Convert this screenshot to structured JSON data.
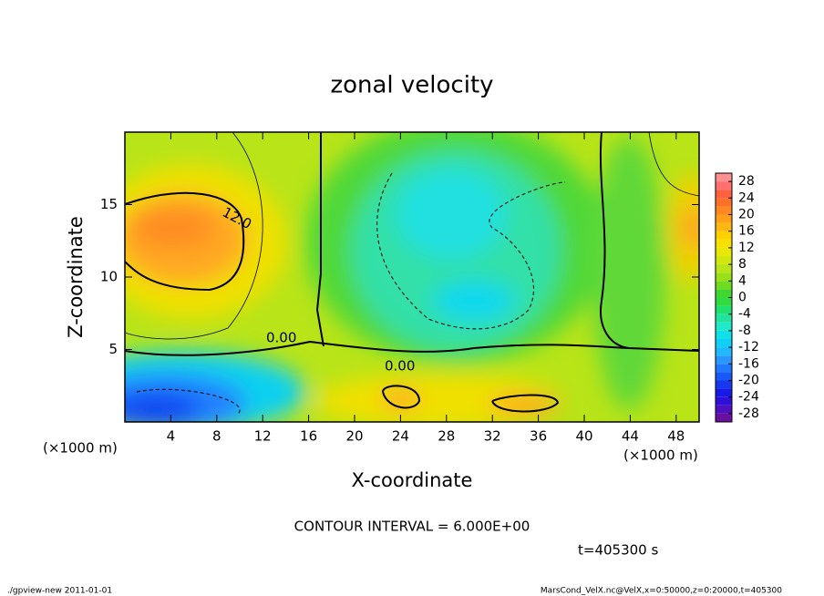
{
  "chart_data": {
    "type": "contour",
    "title": "zonal velocity",
    "x_label": "X-coordinate",
    "y_label": "Z-coordinate",
    "x_unit": "(×1000 m)",
    "y_unit": "(×1000 m)",
    "xlim": [
      0,
      50
    ],
    "xticks": [
      4,
      8,
      12,
      16,
      20,
      24,
      28,
      32,
      36,
      40,
      44,
      48
    ],
    "ylim": [
      0,
      20
    ],
    "yticks": [
      5,
      10,
      15
    ],
    "colorbar": {
      "lim": [
        -30,
        30
      ],
      "ticks": [
        28,
        24,
        20,
        16,
        12,
        8,
        4,
        0,
        -4,
        -8,
        -12,
        -16,
        -20,
        -24,
        -28
      ],
      "levels": [
        -30,
        -28,
        -26,
        -24,
        -22,
        -20,
        -18,
        -16,
        -14,
        -12,
        -10,
        -8,
        -6,
        -4,
        -2,
        0,
        2,
        4,
        6,
        8,
        10,
        12,
        14,
        16,
        18,
        20,
        22,
        24,
        26,
        28,
        30
      ],
      "colors": [
        "#6a10a0",
        "#5010c0",
        "#3010d8",
        "#1818e8",
        "#1838f0",
        "#1858f8",
        "#2078ff",
        "#2898ff",
        "#20b8ff",
        "#10d0f8",
        "#10e0e8",
        "#20e8c8",
        "#20e4a0",
        "#20e070",
        "#30dc40",
        "#40d830",
        "#70dc20",
        "#98e018",
        "#b8e418",
        "#d0e810",
        "#e8e808",
        "#f8e000",
        "#ffd000",
        "#ffb810",
        "#ffa018",
        "#ff8820",
        "#ff7028",
        "#ff6040",
        "#ff7070",
        "#ff9090"
      ]
    },
    "contour_labels": [
      "12.0",
      "0.00",
      "0.00"
    ],
    "annotation": "CONTOUR INTERVAL = 6.000E+00",
    "time_label": "t=405300 s",
    "footer_left": "./gpview-new  2011-01-01",
    "footer_right": "MarsCond_VelX.nc@VelX,x=0:50000,z=0:20000,t=405300"
  }
}
